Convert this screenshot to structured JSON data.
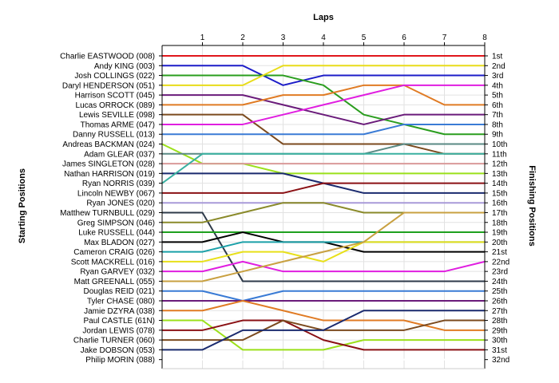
{
  "chart_data": {
    "type": "line",
    "title": "",
    "xlabel": "Laps",
    "ylabel_left": "Starting Positions",
    "ylabel_right": "Finishing Positions",
    "x_ticks": [
      "1",
      "2",
      "3",
      "4",
      "5",
      "6",
      "7",
      "8"
    ],
    "positions_count": 32,
    "finishing_labels": [
      "1st",
      "2nd",
      "3rd",
      "4th",
      "5th",
      "6th",
      "7th",
      "8th",
      "9th",
      "10th",
      "11th",
      "12th",
      "13th",
      "14th",
      "15th",
      "16th",
      "17th",
      "18th",
      "19th",
      "20th",
      "21st",
      "22nd",
      "23rd",
      "24th",
      "25th",
      "26th",
      "27th",
      "28th",
      "29th",
      "30th",
      "31st",
      "32nd"
    ],
    "grid": true,
    "series": [
      {
        "name": "Charlie EASTWOOD (008)",
        "color": "#e0161b",
        "positions": [
          1,
          1,
          1,
          1,
          1,
          1,
          1,
          1,
          1
        ]
      },
      {
        "name": "Andy KING (003)",
        "color": "#1c1cc8",
        "positions": [
          2,
          2,
          2,
          4,
          3,
          3,
          3,
          3,
          3
        ]
      },
      {
        "name": "Josh COLLINGS (022)",
        "color": "#2a9d1e",
        "positions": [
          3,
          3,
          3,
          3,
          4,
          7,
          8,
          9,
          9
        ]
      },
      {
        "name": "Daryl HENDERSON (051)",
        "color": "#e8dc1a",
        "positions": [
          4,
          4,
          4,
          2,
          2,
          2,
          2,
          2,
          2
        ]
      },
      {
        "name": "Harrison SCOTT (045)",
        "color": "#6a1b7a",
        "positions": [
          5,
          5,
          5,
          6,
          7,
          8,
          7,
          7,
          7
        ]
      },
      {
        "name": "Lucas ORROCK (089)",
        "color": "#e07b24",
        "positions": [
          6,
          6,
          6,
          5,
          5,
          4,
          4,
          6,
          6
        ]
      },
      {
        "name": "Lewis SEVILLE (098)",
        "color": "#7b4a1e",
        "positions": [
          7,
          7,
          7,
          10,
          10,
          10,
          10,
          11,
          11
        ]
      },
      {
        "name": "Thomas ARME (047)",
        "color": "#e01ee0",
        "positions": [
          8,
          8,
          8,
          7,
          6,
          5,
          4,
          4,
          4
        ]
      },
      {
        "name": "Danny RUSSELL (013)",
        "color": "#3a7bd5",
        "positions": [
          9,
          9,
          9,
          9,
          9,
          9,
          8,
          8,
          8
        ]
      },
      {
        "name": "Andreas BACKMAN (024)",
        "color": "#9be01a",
        "positions": [
          10,
          12,
          12,
          13,
          13,
          13,
          13,
          13,
          13
        ]
      },
      {
        "name": "Adam GLEAR (037)",
        "color": "#5a8a84",
        "positions": [
          11,
          11,
          11,
          11,
          11,
          11,
          10,
          10,
          10
        ]
      },
      {
        "name": "James SINGLETON (028)",
        "color": "#d99a9a",
        "positions": [
          12,
          12,
          12,
          12,
          12,
          12,
          12,
          12,
          12
        ]
      },
      {
        "name": "Nathan HARRISON (019)",
        "color": "#1a2a6e",
        "positions": [
          13,
          13,
          13,
          13,
          14,
          15,
          15,
          15,
          15
        ]
      },
      {
        "name": "Ryan NORRIS (039)",
        "color": "#3ab0a0",
        "positions": [
          14,
          11,
          11,
          11,
          11,
          11,
          11,
          11,
          11
        ]
      },
      {
        "name": "Lincoln NEWBY (067)",
        "color": "#8a1014",
        "positions": [
          15,
          15,
          15,
          15,
          14,
          14,
          14,
          14,
          14
        ]
      },
      {
        "name": "Ryan JONES (020)",
        "color": "#a89ad8",
        "positions": [
          16,
          16,
          16,
          16,
          16,
          16,
          16,
          16,
          16
        ]
      },
      {
        "name": "Matthew TURNBULL (029)",
        "color": "#2e3a4a",
        "positions": [
          17,
          17,
          24,
          24,
          24,
          24,
          24,
          24,
          24
        ]
      },
      {
        "name": "Greg SIMPSON (046)",
        "color": "#8a8a2a",
        "positions": [
          18,
          18,
          17,
          16,
          16,
          17,
          17,
          17,
          17
        ]
      },
      {
        "name": "Luke RUSSELL (044)",
        "color": "#1ea01e",
        "positions": [
          19,
          19,
          19,
          19,
          19,
          19,
          19,
          19,
          19
        ]
      },
      {
        "name": "Max BLADON (027)",
        "color": "#000000",
        "positions": [
          20,
          20,
          19,
          20,
          20,
          21,
          21,
          21,
          21
        ]
      },
      {
        "name": "Cameron CRAIG (026)",
        "color": "#1aa0a8",
        "positions": [
          21,
          21,
          20,
          20,
          20,
          20,
          20,
          20,
          20
        ]
      },
      {
        "name": "Scott MACKRELL (016)",
        "color": "#e8e01a",
        "positions": [
          22,
          22,
          21,
          21,
          22,
          20,
          20,
          20,
          20
        ]
      },
      {
        "name": "Ryan GARVEY (032)",
        "color": "#e01ee0",
        "positions": [
          23,
          23,
          22,
          23,
          23,
          23,
          23,
          23,
          22
        ]
      },
      {
        "name": "Matt GREENALL (055)",
        "color": "#c8a040",
        "positions": [
          24,
          24,
          23,
          22,
          21,
          20,
          17,
          17,
          17
        ]
      },
      {
        "name": "Douglas REID (021)",
        "color": "#3a7bd5",
        "positions": [
          25,
          25,
          26,
          25,
          25,
          25,
          25,
          25,
          25
        ]
      },
      {
        "name": "Tyler CHASE (080)",
        "color": "#6a1b7a",
        "positions": [
          26,
          26,
          26,
          26,
          26,
          26,
          26,
          26,
          26
        ]
      },
      {
        "name": "Jamie DZYRA (038)",
        "color": "#e07b24",
        "positions": [
          27,
          27,
          26,
          27,
          28,
          28,
          28,
          29,
          29
        ]
      },
      {
        "name": "Paul CASTLE (61N)",
        "color": "#9be01a",
        "positions": [
          28,
          28,
          31,
          31,
          31,
          30,
          30,
          30,
          30
        ]
      },
      {
        "name": "Jordan LEWIS (078)",
        "color": "#8a1014",
        "positions": [
          29,
          29,
          28,
          28,
          30,
          31,
          31,
          31,
          31
        ]
      },
      {
        "name": "Charlie TURNER (060)",
        "color": "#7b4a1e",
        "positions": [
          30,
          30,
          30,
          28,
          29,
          29,
          29,
          28,
          28
        ]
      },
      {
        "name": "Jake DOBSON (053)",
        "color": "#1a2a6e",
        "positions": [
          31,
          31,
          29,
          29,
          29,
          27,
          27,
          27,
          27
        ]
      },
      {
        "name": "Philip MORIN (088)",
        "color": "#ffffff",
        "positions": [
          32,
          32,
          32,
          32,
          32,
          32,
          32,
          32,
          32
        ]
      }
    ]
  }
}
